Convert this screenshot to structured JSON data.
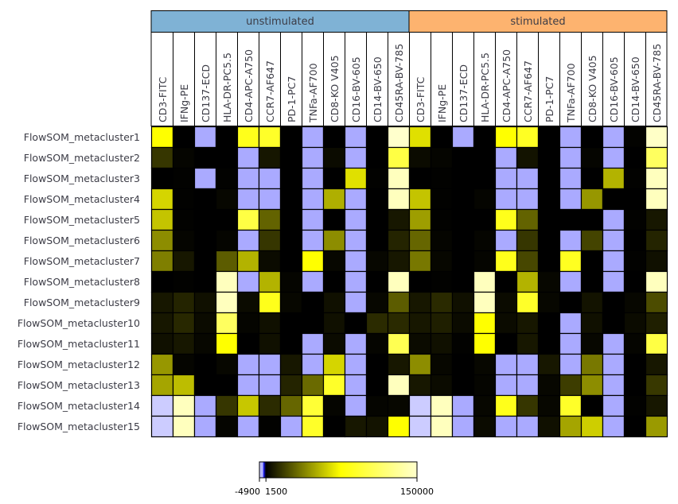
{
  "chart_data": {
    "type": "heatmap",
    "groups": [
      {
        "label": "unstimulated",
        "color": "#7fb2d5"
      },
      {
        "label": "stimulated",
        "color": "#fdb36f"
      }
    ],
    "markers": [
      "CD3-FITC",
      "IFNg-PE",
      "CD137-ECD",
      "HLA-DR-PC5.5",
      "CD4-APC-A750",
      "CCR7-AF647",
      "PD-1-PC7",
      "TNFa-AF700",
      "CD8-KO V405",
      "CD16-BV-605",
      "CD14-BV-650",
      "CD45RA-BV-785"
    ],
    "rows": [
      "FlowSOM_metacluster1",
      "FlowSOM_metacluster2",
      "FlowSOM_metacluster3",
      "FlowSOM_metacluster4",
      "FlowSOM_metacluster5",
      "FlowSOM_metacluster6",
      "FlowSOM_metacluster7",
      "FlowSOM_metacluster8",
      "FlowSOM_metacluster9",
      "FlowSOM_metacluster10",
      "FlowSOM_metacluster11",
      "FlowSOM_metacluster12",
      "FlowSOM_metacluster13",
      "FlowSOM_metacluster14",
      "FlowSOM_metacluster15"
    ],
    "values": [
      [
        75000,
        1500,
        -1500,
        1500,
        85000,
        90000,
        500,
        -1500,
        1000,
        -1500,
        1500,
        150000,
        66000,
        1200,
        -1500,
        1000,
        75000,
        88000,
        800,
        -1500,
        800,
        -1500,
        2500,
        148000
      ],
      [
        17000,
        3000,
        300,
        1500,
        -1500,
        7700,
        300,
        -1500,
        4700,
        -1500,
        1000,
        100000,
        4700,
        3000,
        300,
        1500,
        -1500,
        7000,
        300,
        -1500,
        3000,
        -1500,
        1000,
        110000
      ],
      [
        1000,
        2000,
        -1500,
        2000,
        -1500,
        -1500,
        1000,
        -1500,
        1500,
        66000,
        2000,
        145000,
        1000,
        2000,
        300,
        1500,
        -1500,
        -1500,
        1000,
        -1500,
        1500,
        53000,
        2000,
        145000
      ],
      [
        63000,
        2000,
        300,
        3500,
        -1500,
        -1500,
        1000,
        -1500,
        52000,
        -1500,
        1000,
        145000,
        58000,
        2000,
        300,
        3000,
        -1500,
        -1500,
        1500,
        -1500,
        45000,
        300,
        1000,
        145000
      ],
      [
        58000,
        2000,
        300,
        1500,
        100000,
        30000,
        1000,
        -1500,
        500,
        -1500,
        1000,
        8200,
        47000,
        2000,
        300,
        1500,
        85000,
        30000,
        500,
        300,
        500,
        -1500,
        2000,
        8200
      ],
      [
        42000,
        3000,
        300,
        3000,
        -1500,
        17000,
        300,
        -1500,
        42000,
        -1500,
        1000,
        12000,
        31000,
        3000,
        300,
        3000,
        -1500,
        17000,
        300,
        -1500,
        21000,
        -1500,
        1000,
        12000
      ],
      [
        38000,
        8200,
        1500,
        28000,
        53000,
        4700,
        1000,
        75000,
        3500,
        -1500,
        3500,
        8200,
        36000,
        3500,
        1000,
        3000,
        85000,
        22000,
        1000,
        87000,
        1000,
        -1500,
        2000,
        6000
      ],
      [
        1000,
        2000,
        300,
        145000,
        -1500,
        53000,
        3000,
        -1500,
        500,
        -1500,
        300,
        145000,
        1000,
        2000,
        300,
        145000,
        300,
        53000,
        3500,
        -1500,
        1000,
        -1500,
        1000,
        145000
      ],
      [
        8200,
        12000,
        6000,
        145000,
        4700,
        85000,
        3500,
        1000,
        6000,
        -1500,
        3500,
        28000,
        8200,
        13500,
        6000,
        145000,
        4700,
        90000,
        3500,
        1000,
        7000,
        300,
        3500,
        23500
      ],
      [
        8200,
        13000,
        4700,
        110000,
        3000,
        6000,
        1000,
        300,
        6000,
        1000,
        14000,
        13500,
        8200,
        10500,
        4700,
        75000,
        4700,
        8200,
        300,
        -1500,
        6000,
        300,
        4700,
        10500
      ],
      [
        6000,
        8200,
        3500,
        75000,
        1000,
        6000,
        300,
        -1500,
        4700,
        -1500,
        3000,
        105000,
        4700,
        6000,
        2000,
        75000,
        300,
        8200,
        300,
        -1500,
        3500,
        -1500,
        3000,
        100000
      ],
      [
        45000,
        3000,
        300,
        3500,
        -1500,
        -1500,
        8200,
        -1500,
        63000,
        -1500,
        1000,
        8200,
        42000,
        3500,
        300,
        3500,
        -1500,
        -1500,
        8200,
        -1500,
        36000,
        -1500,
        1500,
        8200
      ],
      [
        49000,
        56000,
        300,
        1500,
        -1500,
        -1500,
        12000,
        32000,
        90000,
        -1500,
        1500,
        145000,
        8200,
        4700,
        300,
        3000,
        -1500,
        -1500,
        3500,
        19000,
        42000,
        -1500,
        1500,
        17500
      ],
      [
        -4900,
        145000,
        -1500,
        17000,
        59000,
        14000,
        31000,
        95000,
        3000,
        -1500,
        3000,
        3500,
        -4900,
        145000,
        -1500,
        3500,
        85000,
        17000,
        3500,
        90000,
        1500,
        -1500,
        2000,
        8200
      ],
      [
        -4900,
        145000,
        -1500,
        3000,
        -1500,
        2000,
        -1500,
        90000,
        1000,
        8200,
        7000,
        75000,
        -4900,
        145000,
        -1500,
        4700,
        -1500,
        -1500,
        6000,
        49000,
        61000,
        -1500,
        1000,
        46000
      ]
    ],
    "color_scale": {
      "min": -4900,
      "max": 150000,
      "stops": [
        {
          "value": -4900,
          "color": "#ccccff"
        },
        {
          "value": -1500,
          "color": "#aaaaff"
        },
        {
          "value": -800,
          "color": "#2020ff"
        },
        {
          "value": 1500,
          "color": "#000000"
        },
        {
          "value": 75000,
          "color": "#ffff00"
        },
        {
          "value": 150000,
          "color": "#ffffcc"
        }
      ],
      "tick_labels": [
        "-4900",
        "1500",
        "150000"
      ]
    }
  }
}
